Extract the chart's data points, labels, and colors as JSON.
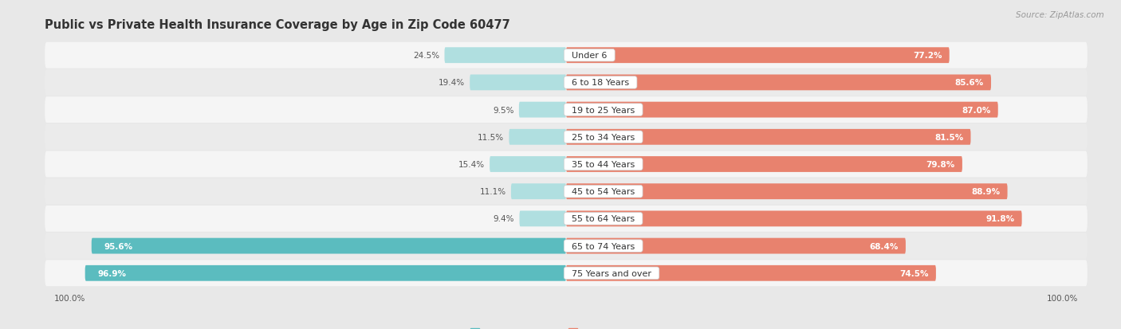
{
  "title": "Public vs Private Health Insurance Coverage by Age in Zip Code 60477",
  "source": "Source: ZipAtlas.com",
  "categories": [
    "Under 6",
    "6 to 18 Years",
    "19 to 25 Years",
    "25 to 34 Years",
    "35 to 44 Years",
    "45 to 54 Years",
    "55 to 64 Years",
    "65 to 74 Years",
    "75 Years and over"
  ],
  "public_values": [
    24.5,
    19.4,
    9.5,
    11.5,
    15.4,
    11.1,
    9.4,
    95.6,
    96.9
  ],
  "private_values": [
    77.2,
    85.6,
    87.0,
    81.5,
    79.8,
    88.9,
    91.8,
    68.4,
    74.5
  ],
  "public_color": "#5bbcbf",
  "private_color": "#e8826e",
  "public_color_light": "#b0dfe0",
  "private_color_light": "#f0c0b8",
  "axis_label_left": "100.0%",
  "axis_label_right": "100.0%",
  "bg_color": "#e8e8e8",
  "row_bg_light": "#f5f5f5",
  "row_bg_dark": "#ebebeb",
  "title_fontsize": 10.5,
  "label_fontsize": 8,
  "value_fontsize": 7.5,
  "legend_fontsize": 8,
  "source_fontsize": 7.5,
  "xlim": 105,
  "bar_height": 0.58
}
